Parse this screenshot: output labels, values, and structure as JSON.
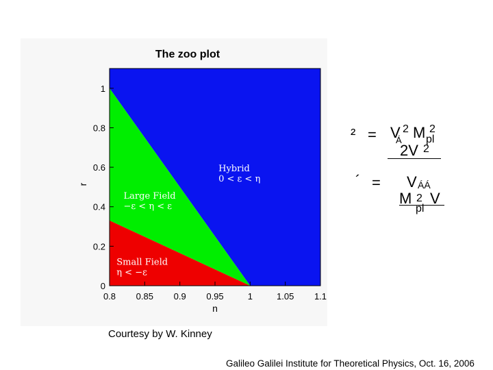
{
  "chart_data": {
    "type": "area",
    "title": "The zoo plot",
    "xlabel": "n",
    "ylabel": "r",
    "xlim": [
      0.8,
      1.1
    ],
    "ylim": [
      0,
      1.1
    ],
    "x_ticks": [
      "0.8",
      "0.85",
      "0.9",
      "0.95",
      "1",
      "1.05",
      "1.1"
    ],
    "y_ticks": [
      "0",
      "0.2",
      "0.4",
      "0.6",
      "0.8",
      "1"
    ],
    "regions": [
      {
        "name": "Hybrid",
        "condition": "0 < ε < η",
        "color": "#0a14f0",
        "label_x": 0.955,
        "label_y": 0.58,
        "polygon": [
          [
            1.0,
            0
          ],
          [
            1.1,
            0
          ],
          [
            1.1,
            1.1
          ],
          [
            0.8,
            1.1
          ],
          [
            0.8,
            1.0
          ]
        ]
      },
      {
        "name": "Large Field",
        "condition": "−ε < η < ε",
        "color": "#00ee00",
        "label_x": 0.82,
        "label_y": 0.44,
        "polygon": [
          [
            0.8,
            1.0
          ],
          [
            1.0,
            0
          ],
          [
            0.8,
            0.33
          ]
        ]
      },
      {
        "name": "Small Field",
        "condition": "η < −ε",
        "color": "#ee0000",
        "label_x": 0.81,
        "label_y": 0.105,
        "polygon": [
          [
            0.8,
            0
          ],
          [
            1.0,
            0
          ],
          [
            0.8,
            0.33
          ]
        ]
      }
    ]
  },
  "equations": {
    "eq1": {
      "lhs": "²",
      "eq": "=",
      "num_main": "V",
      "num_exp": "2",
      "num_sub": "Á",
      "num_m": "M",
      "num_m_exp": "2",
      "num_m_sub": "pl",
      "den": "2V",
      "den_exp": "2"
    },
    "eq2": {
      "lhs": "´",
      "eq": "=",
      "num_main": "V",
      "num_sub": "ÁÁ",
      "den_m": "M",
      "den_exp": "2",
      "den_sub": "pl",
      "den_v": "V"
    }
  },
  "courtesy": "Courtesy by W. Kinney",
  "footer": "Galileo Galilei Institute for Theoretical Physics, Oct. 16, 2006"
}
